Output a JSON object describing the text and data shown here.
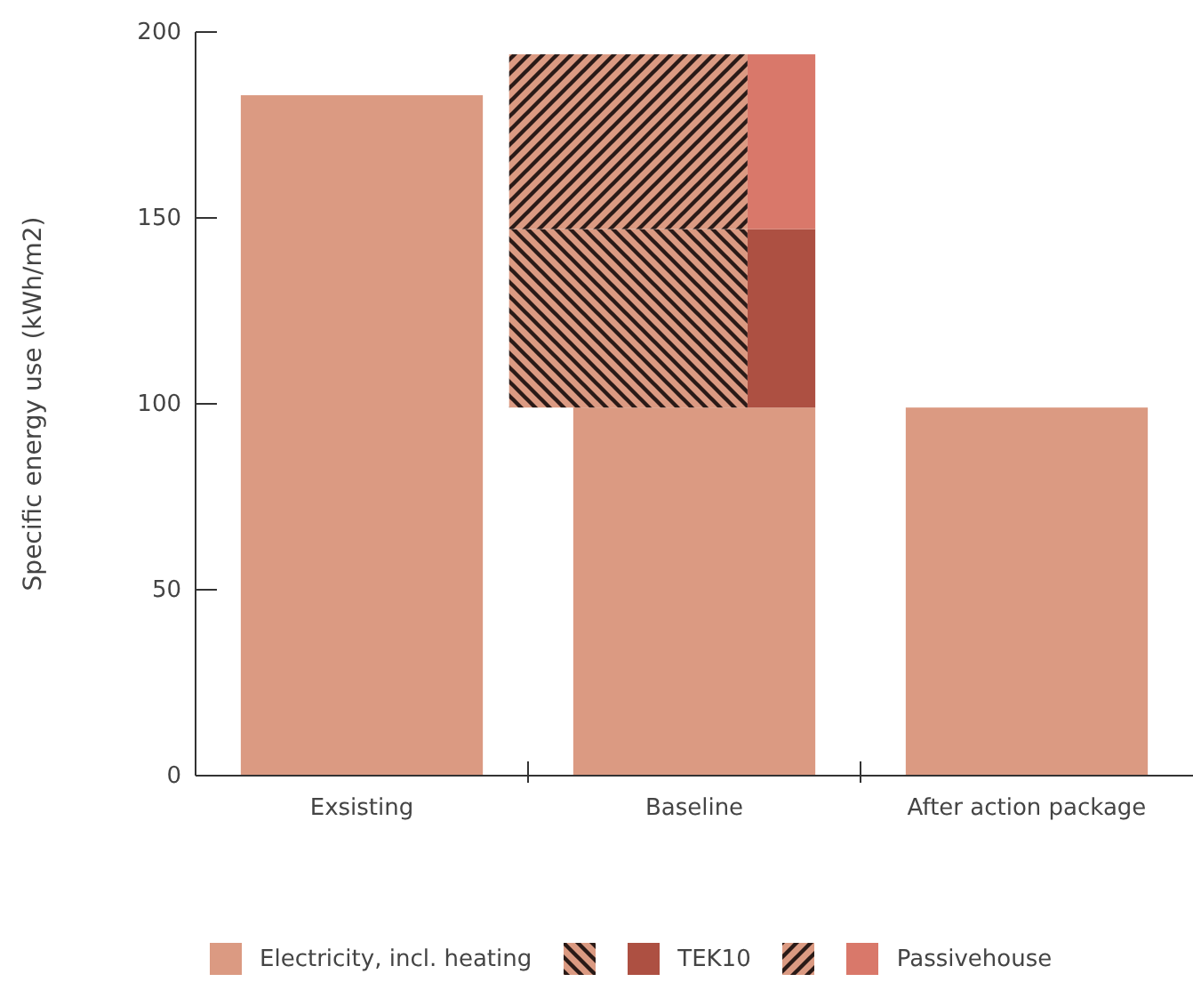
{
  "chart_data": {
    "type": "bar",
    "ylabel": "Specific energy use (kWh/m2)",
    "categories": [
      "Exsisting",
      "Baseline",
      "After action package"
    ],
    "ylim": [
      0,
      200
    ],
    "yticks": [
      0,
      50,
      100,
      150,
      200
    ],
    "legend": "bottom",
    "series": [
      {
        "name": "Electricity, incl. heating",
        "color": "#db9a82",
        "values": [
          183,
          99,
          99
        ]
      },
      {
        "color": "#db9a82",
        "base": [
          null,
          99,
          null
        ],
        "values": [
          null,
          48,
          null
        ]
      },
      {
        "name": "TEK10",
        "color": "#ad5042",
        "base": [
          null,
          99,
          null
        ],
        "values": [
          null,
          48,
          null
        ]
      },
      {
        "color": "#db9a82",
        "base": [
          null,
          147,
          null
        ],
        "values": [
          null,
          47,
          null
        ]
      },
      {
        "name": "Passivehouse",
        "color": "#d9786a",
        "base": [
          null,
          147,
          null
        ],
        "values": [
          null,
          47,
          null
        ]
      }
    ]
  }
}
